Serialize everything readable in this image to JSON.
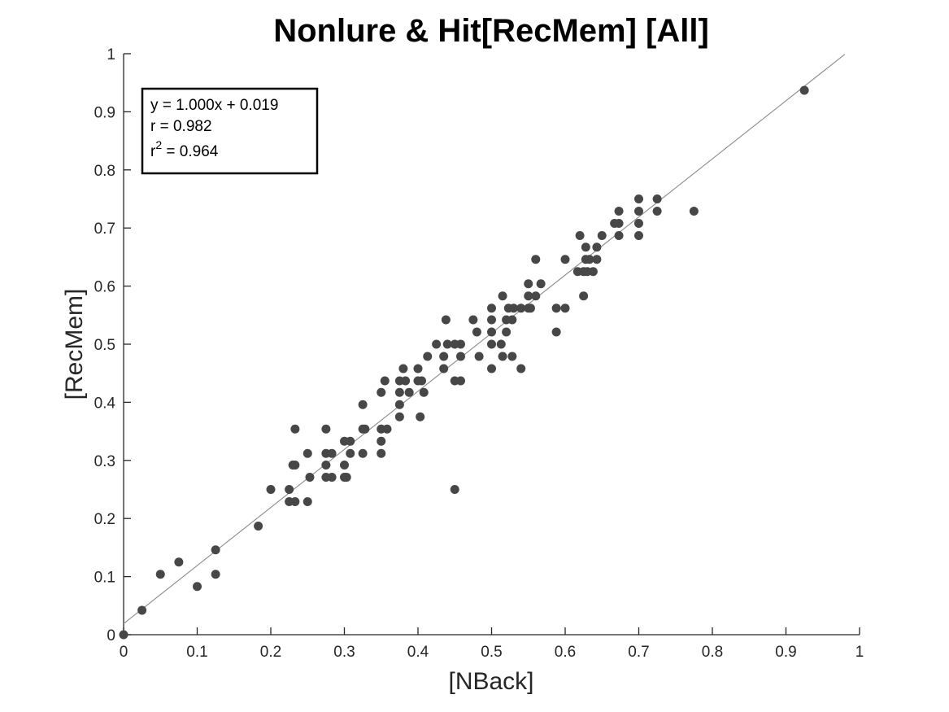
{
  "chart_data": {
    "type": "scatter",
    "title": "Nonlure & Hit[RecMem] [All]",
    "xlabel": "[NBack]",
    "ylabel": "[RecMem]",
    "xlim": [
      0,
      1
    ],
    "ylim": [
      0,
      1
    ],
    "xticks": [
      "0",
      "0.1",
      "0.2",
      "0.3",
      "0.4",
      "0.5",
      "0.6",
      "0.7",
      "0.8",
      "0.9",
      "1"
    ],
    "yticks": [
      "0",
      "0.1",
      "0.2",
      "0.3",
      "0.4",
      "0.5",
      "0.6",
      "0.7",
      "0.8",
      "0.9",
      "1"
    ],
    "grid": false,
    "legend": "none",
    "marker_color": "#474747",
    "fit_line_color": "#8a8a8a",
    "fit": {
      "slope": 1.0,
      "intercept": 0.019,
      "x_range": [
        0,
        0.98
      ]
    },
    "stats": {
      "equation": "y = 1.000x + 0.019",
      "r": "r = 0.982",
      "r2_base": "r",
      "r2_exp": "2",
      "r2_value": " = 0.964"
    },
    "points": [
      [
        0.0,
        0.0
      ],
      [
        0.025,
        0.042
      ],
      [
        0.05,
        0.104
      ],
      [
        0.075,
        0.125
      ],
      [
        0.1,
        0.083
      ],
      [
        0.125,
        0.104
      ],
      [
        0.125,
        0.146
      ],
      [
        0.183,
        0.187
      ],
      [
        0.2,
        0.25
      ],
      [
        0.225,
        0.25
      ],
      [
        0.225,
        0.229
      ],
      [
        0.233,
        0.229
      ],
      [
        0.23,
        0.292
      ],
      [
        0.233,
        0.292
      ],
      [
        0.233,
        0.354
      ],
      [
        0.25,
        0.312
      ],
      [
        0.25,
        0.229
      ],
      [
        0.253,
        0.271
      ],
      [
        0.275,
        0.271
      ],
      [
        0.275,
        0.292
      ],
      [
        0.275,
        0.312
      ],
      [
        0.275,
        0.354
      ],
      [
        0.283,
        0.271
      ],
      [
        0.283,
        0.312
      ],
      [
        0.3,
        0.271
      ],
      [
        0.3,
        0.292
      ],
      [
        0.3,
        0.333
      ],
      [
        0.303,
        0.271
      ],
      [
        0.308,
        0.312
      ],
      [
        0.308,
        0.333
      ],
      [
        0.325,
        0.312
      ],
      [
        0.325,
        0.354
      ],
      [
        0.325,
        0.396
      ],
      [
        0.328,
        0.354
      ],
      [
        0.35,
        0.312
      ],
      [
        0.35,
        0.333
      ],
      [
        0.35,
        0.354
      ],
      [
        0.35,
        0.417
      ],
      [
        0.355,
        0.437
      ],
      [
        0.358,
        0.354
      ],
      [
        0.375,
        0.375
      ],
      [
        0.375,
        0.396
      ],
      [
        0.375,
        0.417
      ],
      [
        0.375,
        0.437
      ],
      [
        0.38,
        0.458
      ],
      [
        0.383,
        0.437
      ],
      [
        0.388,
        0.417
      ],
      [
        0.4,
        0.437
      ],
      [
        0.4,
        0.458
      ],
      [
        0.403,
        0.375
      ],
      [
        0.405,
        0.437
      ],
      [
        0.408,
        0.417
      ],
      [
        0.413,
        0.479
      ],
      [
        0.425,
        0.5
      ],
      [
        0.435,
        0.458
      ],
      [
        0.435,
        0.479
      ],
      [
        0.438,
        0.542
      ],
      [
        0.44,
        0.5
      ],
      [
        0.45,
        0.437
      ],
      [
        0.45,
        0.5
      ],
      [
        0.45,
        0.25
      ],
      [
        0.458,
        0.479
      ],
      [
        0.458,
        0.5
      ],
      [
        0.458,
        0.437
      ],
      [
        0.475,
        0.542
      ],
      [
        0.48,
        0.521
      ],
      [
        0.483,
        0.479
      ],
      [
        0.5,
        0.458
      ],
      [
        0.5,
        0.5
      ],
      [
        0.5,
        0.521
      ],
      [
        0.5,
        0.542
      ],
      [
        0.5,
        0.562
      ],
      [
        0.513,
        0.5
      ],
      [
        0.515,
        0.583
      ],
      [
        0.515,
        0.479
      ],
      [
        0.52,
        0.521
      ],
      [
        0.52,
        0.542
      ],
      [
        0.523,
        0.562
      ],
      [
        0.528,
        0.479
      ],
      [
        0.528,
        0.542
      ],
      [
        0.53,
        0.562
      ],
      [
        0.54,
        0.458
      ],
      [
        0.54,
        0.562
      ],
      [
        0.55,
        0.562
      ],
      [
        0.55,
        0.583
      ],
      [
        0.55,
        0.604
      ],
      [
        0.553,
        0.562
      ],
      [
        0.56,
        0.583
      ],
      [
        0.56,
        0.646
      ],
      [
        0.567,
        0.604
      ],
      [
        0.588,
        0.521
      ],
      [
        0.588,
        0.562
      ],
      [
        0.6,
        0.562
      ],
      [
        0.6,
        0.646
      ],
      [
        0.617,
        0.625
      ],
      [
        0.62,
        0.687
      ],
      [
        0.625,
        0.583
      ],
      [
        0.625,
        0.625
      ],
      [
        0.628,
        0.646
      ],
      [
        0.628,
        0.667
      ],
      [
        0.63,
        0.625
      ],
      [
        0.633,
        0.646
      ],
      [
        0.638,
        0.625
      ],
      [
        0.643,
        0.646
      ],
      [
        0.643,
        0.667
      ],
      [
        0.65,
        0.687
      ],
      [
        0.667,
        0.708
      ],
      [
        0.673,
        0.687
      ],
      [
        0.673,
        0.708
      ],
      [
        0.673,
        0.729
      ],
      [
        0.7,
        0.687
      ],
      [
        0.7,
        0.708
      ],
      [
        0.7,
        0.729
      ],
      [
        0.7,
        0.75
      ],
      [
        0.725,
        0.729
      ],
      [
        0.725,
        0.75
      ],
      [
        0.775,
        0.729
      ],
      [
        0.925,
        0.937
      ]
    ]
  }
}
